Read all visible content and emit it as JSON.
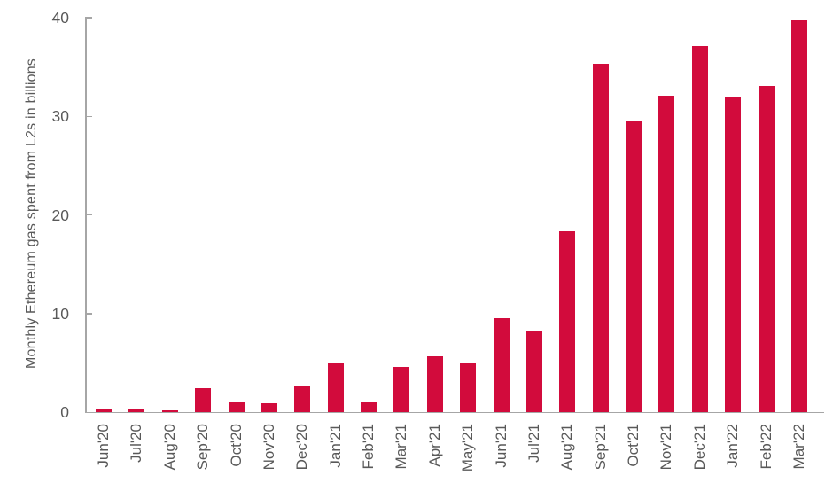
{
  "chart_data": {
    "type": "bar",
    "title": "",
    "xlabel": "",
    "ylabel": "Monthly Ethereum gas spent from L2s in billions",
    "ylim": [
      0,
      40
    ],
    "yticks": [
      0,
      10,
      20,
      30,
      40
    ],
    "grid": false,
    "legend": false,
    "bar_color": "#D20B3C",
    "axis_color": "#A6A6A6",
    "text_color": "#595959",
    "categories": [
      "Jun'20",
      "Jul'20",
      "Aug'20",
      "Sep'20",
      "Oct'20",
      "Nov'20",
      "Dec'20",
      "Jan'21",
      "Feb'21",
      "Mar'21",
      "Apr'21",
      "May'21",
      "Jun'21",
      "Jul'21",
      "Aug'21",
      "Sep'21",
      "Oct'21",
      "Nov'21",
      "Dec'21",
      "Jan'22",
      "Feb'22",
      "Mar'22"
    ],
    "values": [
      0.4,
      0.25,
      0.15,
      2.4,
      1.0,
      0.9,
      2.7,
      5.0,
      1.0,
      4.6,
      5.7,
      4.9,
      9.5,
      8.3,
      18.3,
      35.3,
      29.5,
      32.1,
      37.1,
      32.0,
      33.1,
      39.7
    ]
  }
}
